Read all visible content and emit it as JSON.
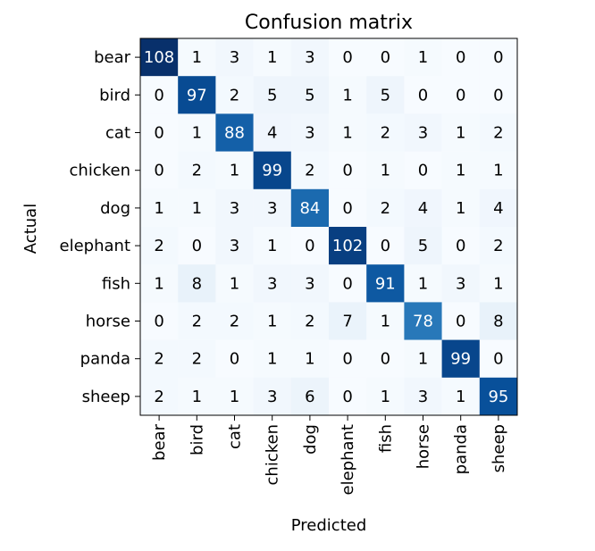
{
  "chart_data": {
    "type": "heatmap",
    "title": "Confusion matrix",
    "xlabel": "Predicted",
    "ylabel": "Actual",
    "x_categories": [
      "bear",
      "bird",
      "cat",
      "chicken",
      "dog",
      "elephant",
      "fish",
      "horse",
      "panda",
      "sheep"
    ],
    "y_categories": [
      "bear",
      "bird",
      "cat",
      "chicken",
      "dog",
      "elephant",
      "fish",
      "horse",
      "panda",
      "sheep"
    ],
    "matrix": [
      [
        108,
        1,
        3,
        1,
        3,
        0,
        0,
        1,
        0,
        0
      ],
      [
        0,
        97,
        2,
        5,
        5,
        1,
        5,
        0,
        0,
        0
      ],
      [
        0,
        1,
        88,
        4,
        3,
        1,
        2,
        3,
        1,
        2
      ],
      [
        0,
        2,
        1,
        99,
        2,
        0,
        1,
        0,
        1,
        1
      ],
      [
        1,
        1,
        3,
        3,
        84,
        0,
        2,
        4,
        1,
        4
      ],
      [
        2,
        0,
        3,
        1,
        0,
        102,
        0,
        5,
        0,
        2
      ],
      [
        1,
        8,
        1,
        3,
        3,
        0,
        91,
        1,
        3,
        1
      ],
      [
        0,
        2,
        2,
        1,
        2,
        7,
        1,
        78,
        0,
        8
      ],
      [
        2,
        2,
        0,
        1,
        1,
        0,
        0,
        1,
        99,
        0
      ],
      [
        2,
        1,
        1,
        3,
        6,
        0,
        1,
        3,
        1,
        95
      ]
    ],
    "colormap": "Blues",
    "colors": {
      "low": "#f7fbff",
      "high": "#08306b",
      "dark_text": "#000000",
      "light_text": "#ffffff"
    },
    "grid": false
  }
}
